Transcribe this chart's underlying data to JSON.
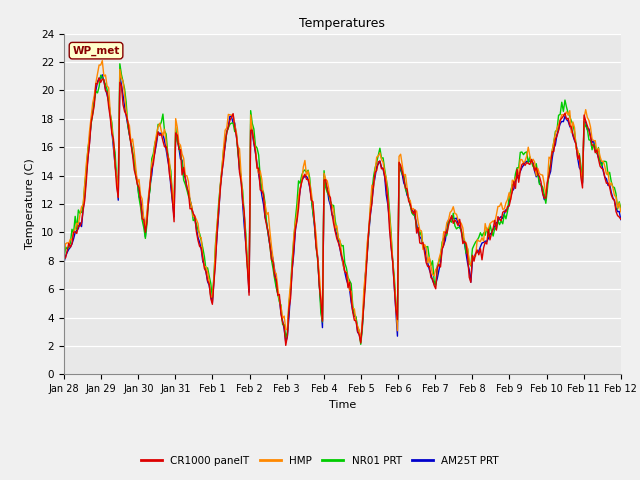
{
  "title": "Temperatures",
  "xlabel": "Time",
  "ylabel": "Temperature (C)",
  "ylim": [
    0,
    24
  ],
  "yticks": [
    0,
    2,
    4,
    6,
    8,
    10,
    12,
    14,
    16,
    18,
    20,
    22,
    24
  ],
  "xtick_labels": [
    "Jan 28",
    "Jan 29",
    "Jan 30",
    "Jan 31",
    "Feb 1",
    "Feb 2",
    "Feb 3",
    "Feb 4",
    "Feb 5",
    "Feb 6",
    "Feb 7",
    "Feb 8",
    "Feb 9",
    "Feb 10",
    "Feb 11",
    "Feb 12"
  ],
  "series_colors": [
    "#dd0000",
    "#ff8800",
    "#00cc00",
    "#0000cc"
  ],
  "series_labels": [
    "CR1000 panelT",
    "HMP",
    "NR01 PRT",
    "AM25T PRT"
  ],
  "annotation_text": "WP_met",
  "annotation_color": "#880000",
  "annotation_bg": "#ffffcc",
  "bg_color": "#e8e8e8",
  "fig_bg": "#f0f0f0",
  "line_width": 1.0,
  "n_points": 350
}
